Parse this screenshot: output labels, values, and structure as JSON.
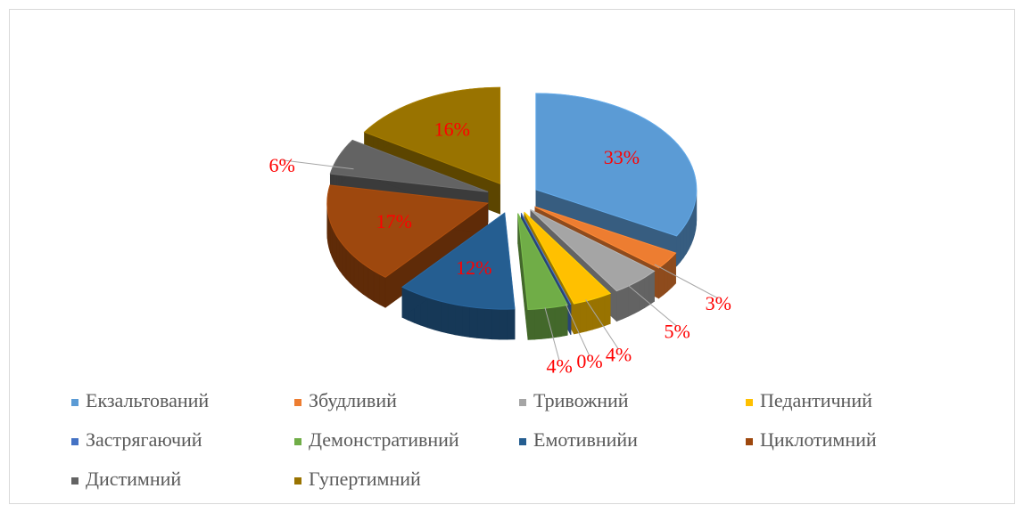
{
  "chart_data": {
    "type": "pie3d",
    "categories": [
      "Екзальтований",
      "Збудливий",
      "Тривожний",
      "Педантичний",
      "Застрягаючий",
      "Демонстративний",
      "Емотивнийи",
      "Циклотимний",
      "Дистимний",
      "Гупертимний"
    ],
    "values": [
      33,
      3,
      5,
      4,
      0,
      4,
      12,
      17,
      6,
      16
    ],
    "value_labels": [
      "33%",
      "3%",
      "5%",
      "4%",
      "0%",
      "4%",
      "12%",
      "17%",
      "6%",
      "16%"
    ],
    "colors": [
      "#5b9bd5",
      "#ed7d31",
      "#a5a5a5",
      "#ffc000",
      "#4472c4",
      "#70ad47",
      "#255e91",
      "#9e480e",
      "#636363",
      "#997300"
    ],
    "label_color": "#ff0000",
    "legend": "bottom"
  }
}
